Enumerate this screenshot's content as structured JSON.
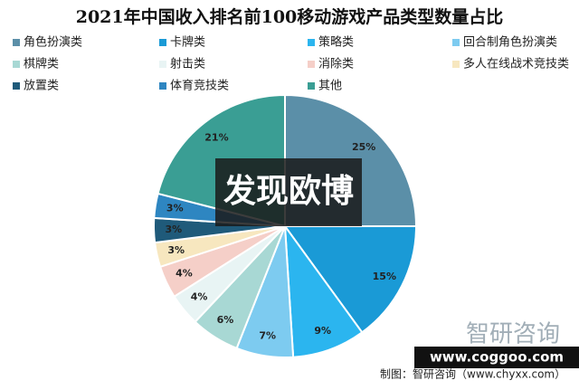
{
  "chart_data": {
    "type": "pie",
    "title": "2021年中国收入排名前100移动游戏产品类型数量占比",
    "categories": [
      "角色扮演类",
      "卡牌类",
      "策略类",
      "回合制角色扮演类",
      "棋牌类",
      "射击类",
      "消除类",
      "多人在线战术竞技类",
      "放置类",
      "体育竞技类",
      "其他"
    ],
    "values": [
      25,
      15,
      9,
      7,
      6,
      4,
      4,
      3,
      3,
      3,
      21
    ],
    "value_labels": [
      "25%",
      "15%",
      "9%",
      "7%",
      "6%",
      "4%",
      "4%",
      "3%",
      "3%",
      "3%",
      "21%"
    ],
    "colors": [
      "#5b8fa8",
      "#1a9ad6",
      "#2bb5ef",
      "#7dcbf0",
      "#a8d8d4",
      "#e8f4f4",
      "#f5cfc8",
      "#f7e7bf",
      "#1f5a7a",
      "#2e86c1",
      "#3a9e94"
    ],
    "annotations": [
      "发现欧博",
      "智研咨询",
      "www.coggoo.com",
      "制图：智研咨询（www.chyxx.com）"
    ]
  }
}
